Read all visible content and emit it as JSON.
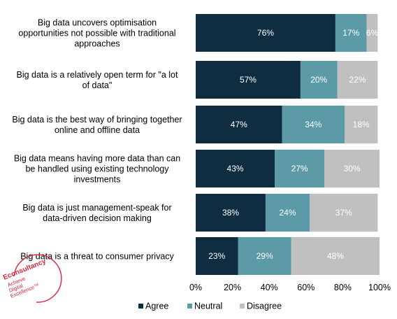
{
  "logo": {
    "brand": "Econsultancy",
    "tagline": [
      "Achieve",
      "Digital",
      "Excellence"
    ],
    "tm": "™",
    "color": "#d7263d"
  },
  "chart_data": {
    "type": "bar",
    "orientation": "horizontal",
    "stacked": true,
    "percent_stacked": true,
    "categories": [
      "Big data uncovers optimisation opportunities not possible with traditional approaches",
      "Big data is a relatively open term for \"a lot of data\"",
      "Big data is the best way of bringing together online and offline data",
      "Big data means having more data than can be handled using existing technology investments",
      "Big data is just management-speak for data-driven decision making",
      "Big data is a threat to consumer privacy"
    ],
    "series": [
      {
        "name": "Agree",
        "color": "#0e2d40",
        "values": [
          76,
          57,
          47,
          43,
          38,
          23
        ]
      },
      {
        "name": "Neutral",
        "color": "#5b9aa6",
        "values": [
          17,
          20,
          34,
          27,
          24,
          29
        ]
      },
      {
        "name": "Disagree",
        "color": "#c0c0c0",
        "values": [
          6,
          22,
          18,
          30,
          37,
          48
        ]
      }
    ],
    "data_labels": [
      [
        "76%",
        "57%",
        "47%",
        "43%",
        "38%",
        "23%"
      ],
      [
        "17%",
        "20%",
        "34%",
        "27%",
        "24%",
        "29%"
      ],
      [
        "6%",
        "22%",
        "18%",
        "30%",
        "37%",
        "48%"
      ]
    ],
    "x_ticks": [
      "0%",
      "20%",
      "40%",
      "60%",
      "80%",
      "100%"
    ],
    "xlim": [
      0,
      100
    ],
    "grid": false,
    "legend_position": "bottom"
  }
}
